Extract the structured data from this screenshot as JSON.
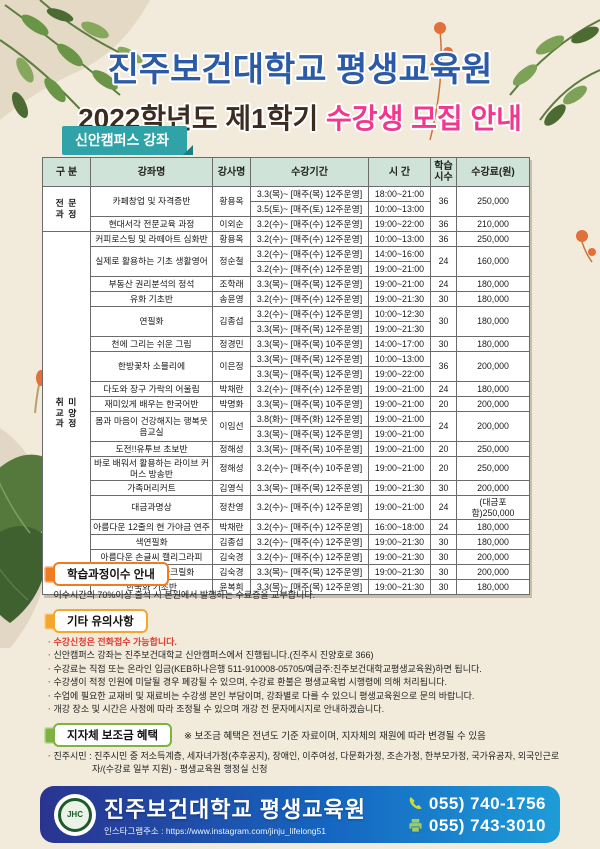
{
  "header": {
    "title": "진주보건대학교 평생교육원",
    "subtitle_prefix": "2022학년도 제1학기",
    "subtitle_highlight": "수강생 모집 안내",
    "campus_badge": "신안캠퍼스 강좌"
  },
  "colors": {
    "title_blue": "#2b5aa7",
    "highlight_pink": "#f0388f",
    "campus_teal": "#2fa3a8",
    "table_header_bg": "#cfe3d8",
    "group_pro_bg": "#fcecdc",
    "group_hobby_bg": "#e4e1f1",
    "emphasis_red": "#e0392f",
    "accent_orange": "#ef7c23",
    "accent_yellow": "#f3a72e",
    "accent_green": "#7cb342",
    "footer_blue_left": "#2a3490",
    "footer_blue_right": "#1e9cd7"
  },
  "table": {
    "columns": [
      "구 분",
      "강좌명",
      "강사명",
      "수강기간",
      "시 간",
      "학습\n시수",
      "수강료(원)"
    ],
    "groups": [
      {
        "label": "전문과정",
        "label_lines": "전 문\n과 정"
      },
      {
        "label": "취미교양과정",
        "label_lines": "취 미\n교 양\n과 정"
      }
    ],
    "rows": [
      {
        "group": 0,
        "name": "카페창업 및 자격증반",
        "teacher": "황용옥",
        "schedule": [
          {
            "period": "3.3(목)~ [매주(목) 12주운영]",
            "time": "18:00~21:00"
          },
          {
            "period": "3.5(토)~ [매주(토) 12주운영]",
            "time": "10:00~13:00"
          }
        ],
        "hours": "36",
        "fee": "250,000"
      },
      {
        "group": 0,
        "name": "현대서각 전문교육 과정",
        "teacher": "이외순",
        "schedule": [
          {
            "period": "3.2(수)~ [매주(수) 12주운영]",
            "time": "19:00~22:00"
          }
        ],
        "hours": "36",
        "fee": "210,000"
      },
      {
        "group": 1,
        "name": "커피로스팅 및 라떼아트 심화반",
        "teacher": "황용옥",
        "schedule": [
          {
            "period": "3.2(수)~ [매주(수) 12주운영]",
            "time": "10:00~13:00"
          }
        ],
        "hours": "36",
        "fee": "250,000"
      },
      {
        "group": 1,
        "name": "실제로 활용하는 기초 생활영어",
        "teacher": "정순철",
        "schedule": [
          {
            "period": "3.2(수)~ [매주(수) 12주운영]",
            "time": "14:00~16:00"
          },
          {
            "period": "3.2(수)~ [매주(수) 12주운영]",
            "time": "19:00~21:00"
          }
        ],
        "hours": "24",
        "fee": "160,000"
      },
      {
        "group": 1,
        "name": "부동산 권리분석의 정석",
        "teacher": "조학래",
        "schedule": [
          {
            "period": "3.3(목)~ [매주(목) 12주운영]",
            "time": "19:00~21:00"
          }
        ],
        "hours": "24",
        "fee": "180,000"
      },
      {
        "group": 1,
        "name": "유화 기초반",
        "teacher": "송윤영",
        "schedule": [
          {
            "period": "3.2(수)~ [매주(수) 12주운영]",
            "time": "19:00~21:30"
          }
        ],
        "hours": "30",
        "fee": "180,000"
      },
      {
        "group": 1,
        "name": "연필화",
        "teacher": "김종섭",
        "schedule": [
          {
            "period": "3.2(수)~ [매주(수) 12주운영]",
            "time": "10:00~12:30"
          },
          {
            "period": "3.3(목)~ [매주(목) 12주운영]",
            "time": "19:00~21:30"
          }
        ],
        "hours": "30",
        "fee": "180,000"
      },
      {
        "group": 1,
        "name": "천에 그리는 쉬운 그림",
        "teacher": "정경민",
        "schedule": [
          {
            "period": "3.3(목)~ [매주(목) 10주운영]",
            "time": "14:00~17:00"
          }
        ],
        "hours": "30",
        "fee": "180,000"
      },
      {
        "group": 1,
        "name": "한방꽃차 소믈리에",
        "teacher": "이은정",
        "schedule": [
          {
            "period": "3.3(목)~ [매주(목) 12주운영]",
            "time": "10:00~13:00"
          },
          {
            "period": "3.3(목)~ [매주(목) 12주운영]",
            "time": "19:00~22:00"
          }
        ],
        "hours": "36",
        "fee": "200,000"
      },
      {
        "group": 1,
        "name": "다도와 장구 가락의 어울림",
        "teacher": "박채란",
        "schedule": [
          {
            "period": "3.2(수)~ [매주(수) 12주운영]",
            "time": "19:00~21:00"
          }
        ],
        "hours": "24",
        "fee": "180,000"
      },
      {
        "group": 1,
        "name": "재미있게 배우는 한국어반",
        "teacher": "박명화",
        "schedule": [
          {
            "period": "3.3(목)~ [매주(목) 10주운영]",
            "time": "19:00~21:00"
          }
        ],
        "hours": "20",
        "fee": "200,000"
      },
      {
        "group": 1,
        "name": "몸과 마음이 건강해지는 행복웃음교실",
        "teacher": "이임선",
        "schedule": [
          {
            "period": "3.8(화)~ [매주(화) 12주운영]",
            "time": "19:00~21:00"
          },
          {
            "period": "3.3(목)~ [매주(목) 12주운영]",
            "time": "19:00~21:00"
          }
        ],
        "hours": "24",
        "fee": "200,000"
      },
      {
        "group": 1,
        "name": "도전!!유투브 초보반",
        "teacher": "정해성",
        "schedule": [
          {
            "period": "3.3(목)~ [매주(목) 10주운영]",
            "time": "19:00~21:00"
          }
        ],
        "hours": "20",
        "fee": "250,000"
      },
      {
        "group": 1,
        "name": "바로 배워서 활용하는 라이브 커머스 방송반",
        "teacher": "정해성",
        "schedule": [
          {
            "period": "3.2(수)~ [매주(수) 10주운영]",
            "time": "19:00~21:00"
          }
        ],
        "hours": "20",
        "fee": "250,000"
      },
      {
        "group": 1,
        "name": "가족머리커트",
        "teacher": "김영식",
        "schedule": [
          {
            "period": "3.3(목)~ [매주(목) 12주운영]",
            "time": "19:00~21:30"
          }
        ],
        "hours": "30",
        "fee": "200,000"
      },
      {
        "group": 1,
        "name": "대금과명상",
        "teacher": "정찬영",
        "schedule": [
          {
            "period": "3.2(수)~ [매주(수) 12주운영]",
            "time": "19:00~21:00"
          }
        ],
        "hours": "24",
        "fee": "(대금포함)250,000"
      },
      {
        "group": 1,
        "name": "아름다운 12줄의 현 가야금 연주",
        "teacher": "박채란",
        "schedule": [
          {
            "period": "3.2(수)~ [매주(수) 12주운영]",
            "time": "16:00~18:00"
          }
        ],
        "hours": "24",
        "fee": "180,000"
      },
      {
        "group": 1,
        "name": "색연필화",
        "teacher": "김종섭",
        "schedule": [
          {
            "period": "3.2(수)~ [매주(수) 12주운영]",
            "time": "19:00~21:30"
          }
        ],
        "hours": "30",
        "fee": "180,000"
      },
      {
        "group": 1,
        "name": "아름다운 손글씨 캘리그라피",
        "teacher": "김숙경",
        "schedule": [
          {
            "period": "3.2(수)~ [매주(수) 12주운영]",
            "time": "19:00~21:30"
          }
        ],
        "hours": "30",
        "fee": "200,000"
      },
      {
        "group": 1,
        "name": "쉽고 재미있는 아크릴화",
        "teacher": "김숙경",
        "schedule": [
          {
            "period": "3.3(목)~ [매주(목) 12주운영]",
            "time": "19:00~21:30"
          }
        ],
        "hours": "30",
        "fee": "200,000"
      },
      {
        "group": 1,
        "name": "한국화 기초반",
        "teacher": "윤복희",
        "schedule": [
          {
            "period": "3.3(목)~ [매주(목) 12주운영]",
            "time": "19:00~21:30"
          }
        ],
        "hours": "30",
        "fee": "180,000"
      }
    ]
  },
  "sections": [
    {
      "title": "학습과정이수 안내",
      "accent": "#ef7c23",
      "note": "",
      "items": [
        {
          "text": "이수시간의 70%이상 출석 시 본원에서 발행하는 수료증을 교부합니다.",
          "emphasis": false
        }
      ]
    },
    {
      "title": "기타 유의사항",
      "accent": "#f3a72e",
      "note": "",
      "items": [
        {
          "text": "수강신청은 전화접수 가능합니다.",
          "emphasis": true
        },
        {
          "text": "신안캠퍼스 강좌는 진주보건대학교 신안캠퍼스에서 진행됩니다.(진주시 진양호로 366)",
          "emphasis": false
        },
        {
          "text": "수강료는 직접 또는 온라인 입금(KEB하나은행 511-910008-05705/예금주:진주보건대학교평생교육원)하면 됩니다.",
          "emphasis": false
        },
        {
          "text": "수강생이 적정 인원에 미달될 경우 폐강될 수 있으며, 수강료 환불은 평생교육법 시행령에 의해 처리됩니다.",
          "emphasis": false
        },
        {
          "text": "수업에 필요한 교재비 및 재료비는 수강생 본인 부담이며, 강좌별로 다를 수 있으니 평생교육원으로 문의 바랍니다.",
          "emphasis": false
        },
        {
          "text": "개강 장소 및 시간은 사정에 따라 조정될 수 있으며 개강 전 문자메시지로 안내하겠습니다.",
          "emphasis": false
        }
      ]
    },
    {
      "title": "지자체 보조금 혜택",
      "accent": "#7cb342",
      "note": "※ 보조금 혜택은 전년도 기준 자료이며, 지자체의 재원에 따라 변경될 수 있음",
      "items": [
        {
          "text": "진주시민 : 진주시민 중 저소득계층, 세자녀가정(추후공지), 장애인, 이주여성, 다문화가정, 조손가정, 한부모가정, 국가유공자, 외국인근로자/(수강료 일부 지원) - 평생교육원 행정실 신청",
          "emphasis": false
        }
      ]
    }
  ],
  "footer": {
    "name": "진주보건대학교 평생교육원",
    "logo_text": "JHC",
    "instagram": "인스타그램주소 : https://www.instagram.com/jinju_lifelong51",
    "phone": "055) 740-1756",
    "fax": "055) 743-3010"
  }
}
